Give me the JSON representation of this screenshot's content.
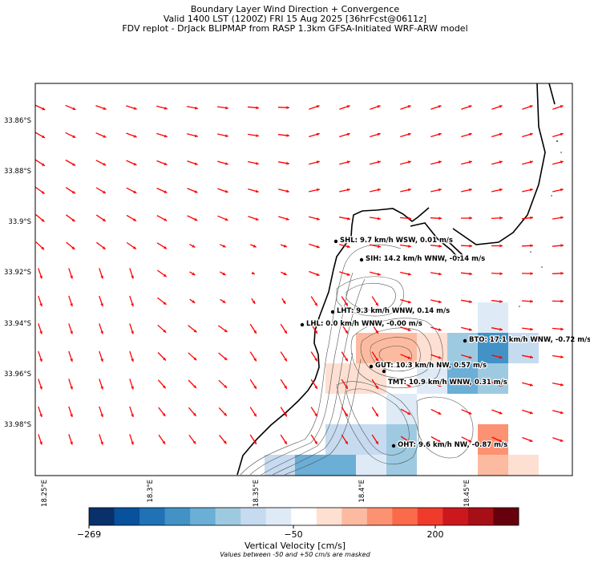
{
  "title": {
    "line1": "Boundary Layer Wind Direction + Convergence",
    "line2": "Valid 1400 LST (1200Z) FRI 15 Aug 2025 [36hrFcst@0611z]",
    "line3": "FDV replot - DrJack BLIPMAP from RASP 1.3km GFSA-Initiated WRF-ARW model"
  },
  "map": {
    "lat_ticks": [
      "33.86°S",
      "33.88°S",
      "33.9°S",
      "33.92°S",
      "33.94°S",
      "33.96°S",
      "33.98°S"
    ],
    "lon_ticks": [
      "18.25°E",
      "18.3°E",
      "18.35°E",
      "18.4°E",
      "18.45°E"
    ],
    "arrow_color": "#ff0000",
    "coastline_color": "#000000"
  },
  "stations": [
    {
      "id": "SHL",
      "label": "SHL: 9.7 km/h WSW, 0.01 m/s"
    },
    {
      "id": "SIH",
      "label": "SIH: 14.2 km/h WNW, -0.14 m/s"
    },
    {
      "id": "LHT",
      "label": "LHT: 9.3 km/h WNW, 0.14 m/s"
    },
    {
      "id": "LHL",
      "label": "LHL: 0.0 km/h WNW, -0.00 m/s"
    },
    {
      "id": "BTO",
      "label": "BTO: 17.1 km/h WNW, -0.72 m/s"
    },
    {
      "id": "GUT",
      "label": "GUT: 10.3 km/h NW, 0.57 m/s"
    },
    {
      "id": "TMT",
      "label": "TMT: 10.9 km/h WNW, 0.31 m/s"
    },
    {
      "id": "OHT",
      "label": "OHT: 9.6 km/h NW, -0.87 m/s"
    }
  ],
  "colorbar": {
    "ticks": [
      "−269",
      "−50",
      "200"
    ],
    "label": "Vertical Velocity [cm/s]",
    "note": "Values between -50 and +50 cm/s are masked",
    "colors": [
      "#08306b",
      "#08519c",
      "#2171b5",
      "#4292c6",
      "#6baed6",
      "#9ecae1",
      "#c6dbef",
      "#deebf7",
      "#ffffff",
      "#fee0d2",
      "#fcbba1",
      "#fc9272",
      "#fb6a4a",
      "#ef3b2c",
      "#cb181d",
      "#a50f15",
      "#67000d"
    ]
  }
}
